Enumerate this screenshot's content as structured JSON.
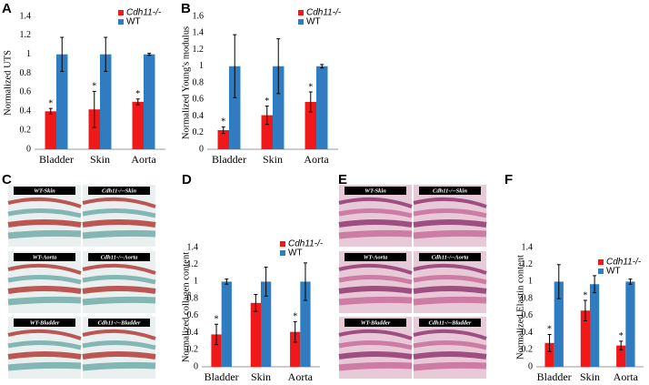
{
  "panel_labels": [
    "A",
    "B",
    "C",
    "D",
    "E",
    "F"
  ],
  "histology_c": [
    "WT-Skin",
    "Cdh11-/--Skin",
    "WT-Aorta",
    "Cdh11-/--Aorta",
    "WT-Bladder",
    "Cdh11-/--Bladder"
  ],
  "histology_e": [
    "WT-Skin",
    "Cdh11-/--Skin",
    "WT-Aorta",
    "Cdh11-/--Aorta",
    "WT-Bladder",
    "Cdh11-/--Bladder"
  ],
  "chart_data": [
    {
      "type": "bar",
      "ylabel": "Normalized UTS",
      "categories": [
        "Bladder",
        "Skin",
        "Aorta"
      ],
      "series": [
        {
          "name": "Cdh11-/-",
          "color": "#f01818",
          "values": [
            0.4,
            0.42,
            0.5
          ],
          "errors": [
            0.03,
            0.19,
            0.03
          ],
          "annotations": [
            "*",
            "*",
            "*"
          ]
        },
        {
          "name": "WT",
          "color": "#2f7cc0",
          "values": [
            1.0,
            1.0,
            1.0
          ],
          "errors": [
            0.18,
            0.18,
            0.01
          ]
        }
      ],
      "ylim": [
        0,
        1.4
      ],
      "yticks": [
        0,
        0.2,
        0.4,
        0.6,
        0.8,
        1,
        1.2,
        1.4
      ],
      "legend": "upper right"
    },
    {
      "type": "bar",
      "ylabel": "Normalized Young's modulus",
      "categories": [
        "Bladder",
        "Skin",
        "Aorta"
      ],
      "series": [
        {
          "name": "Cdh11-/-",
          "color": "#f01818",
          "values": [
            0.23,
            0.41,
            0.57
          ],
          "errors": [
            0.04,
            0.11,
            0.12
          ],
          "annotations": [
            "*",
            "*",
            "*"
          ]
        },
        {
          "name": "WT",
          "color": "#2f7cc0",
          "values": [
            1.0,
            1.0,
            1.0
          ],
          "errors": [
            0.38,
            0.33,
            0.02
          ]
        }
      ],
      "ylim": [
        0,
        1.6
      ],
      "yticks": [
        0,
        0.2,
        0.4,
        0.6,
        0.8,
        1,
        1.2,
        1.4,
        1.6
      ],
      "legend": "upper right"
    },
    {
      "type": "bar",
      "ylabel": "Normalized collagen content",
      "categories": [
        "Bladder",
        "Skin",
        "Aorta"
      ],
      "series": [
        {
          "name": "Cdh11-/-",
          "color": "#f01818",
          "values": [
            0.38,
            0.75,
            0.41
          ],
          "errors": [
            0.12,
            0.1,
            0.12
          ],
          "annotations": [
            "*",
            null,
            "*"
          ]
        },
        {
          "name": "WT",
          "color": "#2f7cc0",
          "values": [
            1.0,
            1.0,
            1.0
          ],
          "errors": [
            0.03,
            0.17,
            0.22
          ]
        }
      ],
      "ylim": [
        0,
        1.4
      ],
      "yticks": [
        0,
        0.2,
        0.4,
        0.6,
        0.8,
        1,
        1.2,
        1.4
      ],
      "legend": "upper right"
    },
    {
      "type": "bar",
      "ylabel": "Normalized Elastin content",
      "categories": [
        "Bladder",
        "Skin",
        "Aorta"
      ],
      "series": [
        {
          "name": "Cdh11-/-",
          "color": "#f01818",
          "values": [
            0.28,
            0.66,
            0.25
          ],
          "errors": [
            0.1,
            0.12,
            0.05
          ],
          "annotations": [
            "*",
            "*",
            "*"
          ]
        },
        {
          "name": "WT",
          "color": "#2f7cc0",
          "values": [
            1.0,
            0.97,
            1.0
          ],
          "errors": [
            0.2,
            0.1,
            0.03
          ]
        }
      ],
      "ylim": [
        0,
        1.4
      ],
      "yticks": [
        0,
        0.2,
        0.4,
        0.6,
        0.8,
        1,
        1.2,
        1.4
      ],
      "legend": "upper right"
    }
  ]
}
